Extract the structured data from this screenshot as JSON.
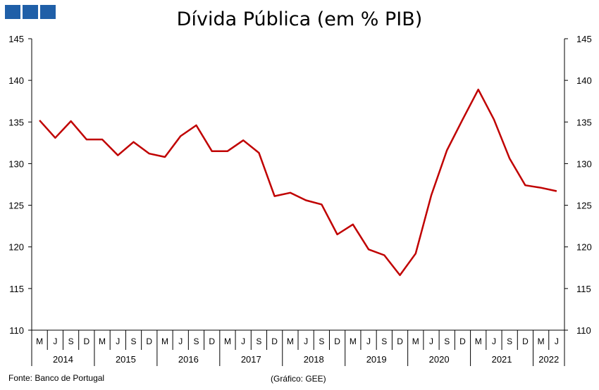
{
  "logo_color": "#1f5fa8",
  "line_color": "#c00000",
  "footer": {
    "source": "Fonte: Banco de Portugal",
    "credit": "(Gráfico: GEE)"
  },
  "chart_data": {
    "type": "line",
    "title": "Dívida Pública (em % PIB)",
    "xlabel": "",
    "ylabel": "",
    "ylim": [
      110,
      145
    ],
    "yticks": [
      110,
      115,
      120,
      125,
      130,
      135,
      140,
      145
    ],
    "y_axis_sides": [
      "left",
      "right"
    ],
    "grid": false,
    "legend": "none",
    "month_labels": [
      "M",
      "J",
      "S",
      "D",
      "M",
      "J",
      "S",
      "D",
      "M",
      "J",
      "S",
      "D",
      "M",
      "J",
      "S",
      "D",
      "M",
      "J",
      "S",
      "D",
      "M",
      "J",
      "S",
      "D",
      "M",
      "J",
      "S",
      "D",
      "M",
      "J",
      "S",
      "D",
      "M",
      "J"
    ],
    "years": [
      {
        "label": "2014",
        "count": 4
      },
      {
        "label": "2015",
        "count": 4
      },
      {
        "label": "2016",
        "count": 4
      },
      {
        "label": "2017",
        "count": 4
      },
      {
        "label": "2018",
        "count": 4
      },
      {
        "label": "2019",
        "count": 4
      },
      {
        "label": "2020",
        "count": 4
      },
      {
        "label": "2021",
        "count": 4
      },
      {
        "label": "2022",
        "count": 2
      }
    ],
    "series": [
      {
        "values": [
          135.2,
          133.1,
          135.1,
          132.9,
          132.9,
          131.0,
          132.6,
          131.2,
          130.8,
          133.3,
          134.6,
          131.5,
          131.5,
          132.8,
          131.3,
          126.1,
          126.5,
          125.6,
          125.1,
          121.5,
          122.7,
          119.7,
          119.0,
          116.6,
          119.2,
          126.2,
          131.6,
          135.3,
          138.9,
          135.3,
          130.6,
          127.4,
          127.1,
          126.7
        ]
      }
    ]
  }
}
